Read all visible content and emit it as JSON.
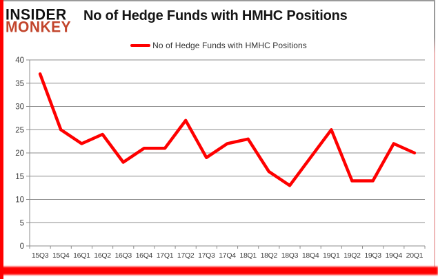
{
  "branding": {
    "logo_line1": "INSIDER",
    "logo_line2": "MONKEY",
    "logo_color_top": "#111111",
    "logo_color_bottom": "#c2452c"
  },
  "header": {
    "title": "No of Hedge Funds with HMHC Positions"
  },
  "legend": {
    "label": "No of Hedge Funds with HMHC Positions",
    "marker_color": "#fe0000"
  },
  "chart_data": {
    "type": "line",
    "title": "No of Hedge Funds with HMHC Positions",
    "categories": [
      "15Q3",
      "15Q4",
      "16Q1",
      "16Q2",
      "16Q3",
      "16Q4",
      "17Q1",
      "17Q2",
      "17Q3",
      "17Q4",
      "18Q1",
      "18Q2",
      "18Q3",
      "18Q4",
      "19Q1",
      "19Q2",
      "19Q3",
      "19Q4",
      "20Q1"
    ],
    "series": [
      {
        "name": "No of Hedge Funds with HMHC Positions",
        "color": "#fe0000",
        "values": [
          37,
          25,
          22,
          24,
          18,
          21,
          21,
          27,
          19,
          22,
          23,
          16,
          13,
          19,
          25,
          14,
          14,
          22,
          20
        ]
      }
    ],
    "xlabel": "",
    "ylabel": "",
    "ylim": [
      0,
      40
    ],
    "yticks": [
      0,
      5,
      10,
      15,
      20,
      25,
      30,
      35,
      40
    ],
    "grid": true,
    "legend_position": "top"
  },
  "colors": {
    "line": "#fe0000",
    "grid": "#8c8c8c",
    "axis": "#8c8c8c",
    "tick_text": "#3f3f3f",
    "accent_border": "#fe0000"
  }
}
